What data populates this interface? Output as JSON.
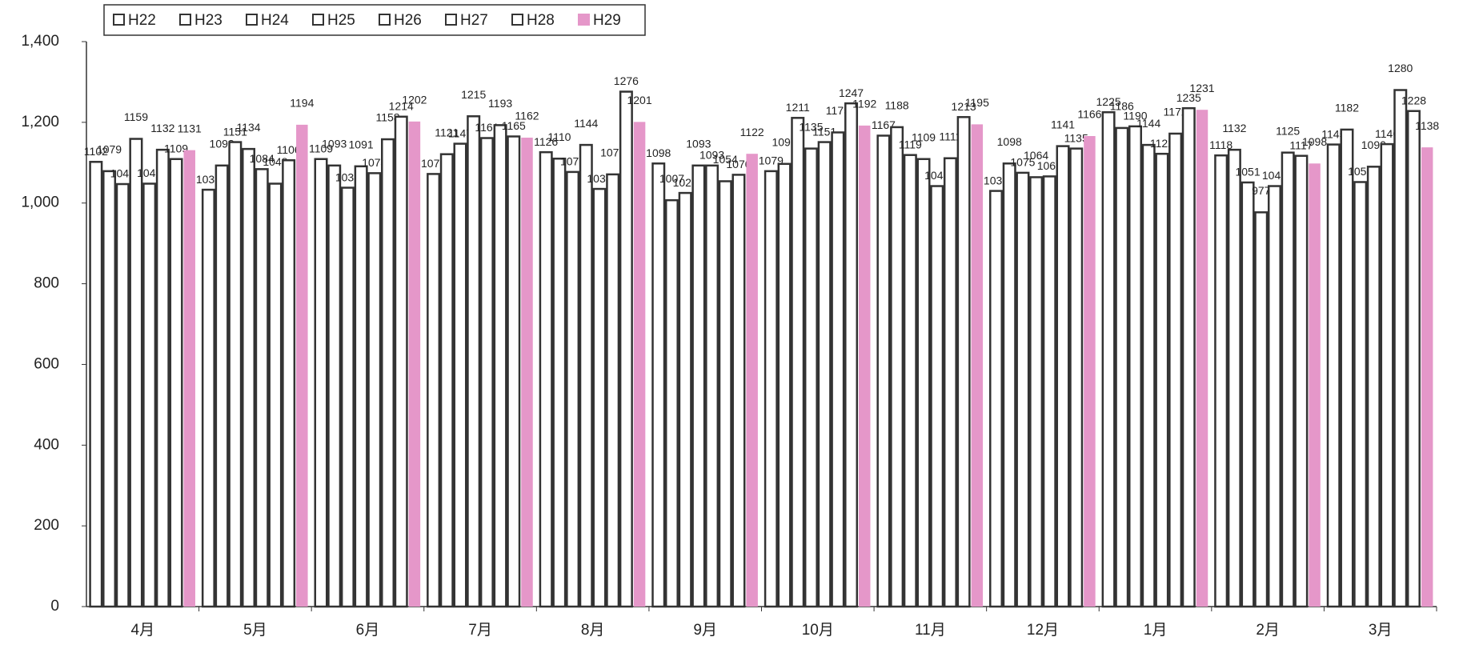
{
  "chart_data": {
    "type": "bar",
    "categories": [
      "4月",
      "5月",
      "6月",
      "7月",
      "8月",
      "9月",
      "10月",
      "11月",
      "12月",
      "1月",
      "2月",
      "3月"
    ],
    "series": [
      {
        "name": "H22",
        "color": "#ffffff",
        "values": [
          1102,
          1033,
          1109,
          1072,
          1126,
          1098,
          1079,
          1167,
          1030,
          1225,
          1118,
          1145
        ]
      },
      {
        "name": "H23",
        "color": "#ffffff",
        "values": [
          1079,
          1093,
          1093,
          1121,
          1110,
          1007,
          1097,
          1188,
          1098,
          1186,
          1132,
          1182
        ]
      },
      {
        "name": "H24",
        "color": "#ffffff",
        "values": [
          1047,
          1151,
          1038,
          1147,
          1077,
          1025,
          1211,
          1119,
          1075,
          1190,
          1051,
          1052
        ]
      },
      {
        "name": "H25",
        "color": "#ffffff",
        "values": [
          1159,
          1134,
          1091,
          1215,
          1144,
          1093,
          1135,
          1109,
          1064,
          1144,
          977,
          1090
        ]
      },
      {
        "name": "H26",
        "color": "#ffffff",
        "values": [
          1048,
          1084,
          1074,
          1161,
          1035,
          1093,
          1151,
          1042,
          1066,
          1122,
          1042,
          1146
        ]
      },
      {
        "name": "H27",
        "color": "#ffffff",
        "values": [
          1132,
          1048,
          1158,
          1193,
          1071,
          1054,
          1175,
          1111,
          1141,
          1172,
          1125,
          1280
        ]
      },
      {
        "name": "H28",
        "color": "#ffffff",
        "values": [
          1109,
          1106,
          1214,
          1165,
          1276,
          1070,
          1247,
          1213,
          1135,
          1235,
          1117,
          1228
        ]
      },
      {
        "name": "H29",
        "color": "#e597c9",
        "values": [
          1131,
          1194,
          1202,
          1162,
          1201,
          1122,
          1192,
          1195,
          1166,
          1231,
          1098,
          1138
        ]
      }
    ],
    "ylim": [
      0,
      1400
    ],
    "yticks": [
      0,
      200,
      400,
      600,
      800,
      {
        "value": 1000,
        "label": "1,000"
      },
      {
        "value": 1200,
        "label": "1,200"
      },
      {
        "value": 1400,
        "label": "1,400"
      }
    ],
    "legend": "top-left"
  }
}
